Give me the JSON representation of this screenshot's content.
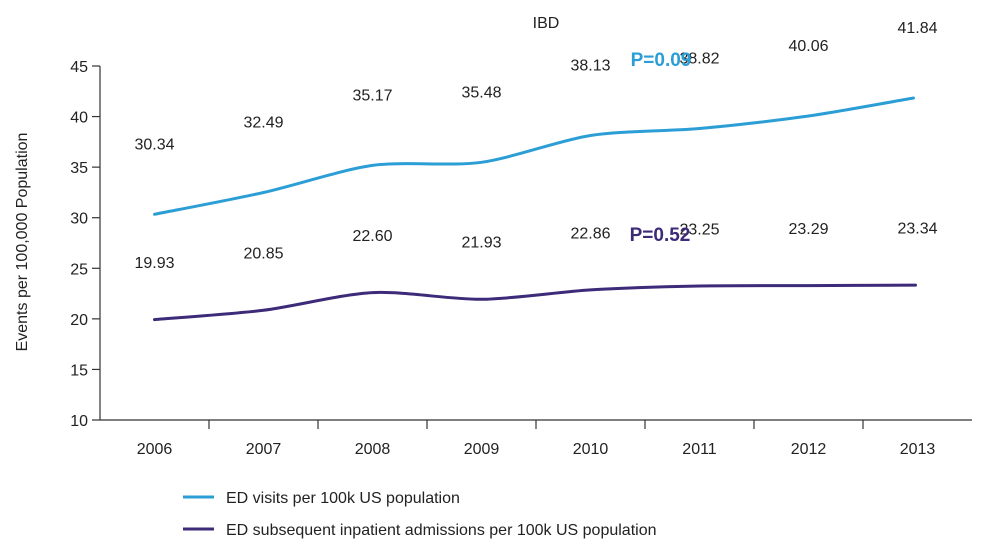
{
  "chart_data": {
    "type": "line",
    "title": "IBD",
    "xlabel": "",
    "ylabel": "Events per 100,000 Population",
    "categories": [
      "2006",
      "2007",
      "2008",
      "2009",
      "2010",
      "2011",
      "2012",
      "2013"
    ],
    "ylim": [
      10,
      45
    ],
    "yticks": [
      10,
      15,
      20,
      25,
      30,
      35,
      40,
      45
    ],
    "grid": false,
    "legend_position": "bottom",
    "series": [
      {
        "name": "ED visits per 100k US population",
        "color": "#2c9ed6",
        "values": [
          30.34,
          32.49,
          35.17,
          35.48,
          38.13,
          38.82,
          40.06,
          41.84
        ],
        "labels": [
          "30.34",
          "32.49",
          "35.17",
          "35.48",
          "38.13",
          "38.82",
          "40.06",
          "41.84"
        ],
        "annotation": "P=0.09"
      },
      {
        "name": "ED subsequent inpatient admissions per 100k US population",
        "color": "#3d2a78",
        "values": [
          19.93,
          20.85,
          22.6,
          21.93,
          22.86,
          23.25,
          23.29,
          23.34
        ],
        "labels": [
          "19.93",
          "20.85",
          "22.60",
          "21.93",
          "22.86",
          "23.25",
          "23.29",
          "23.34"
        ],
        "annotation": "P=0.52"
      }
    ]
  }
}
